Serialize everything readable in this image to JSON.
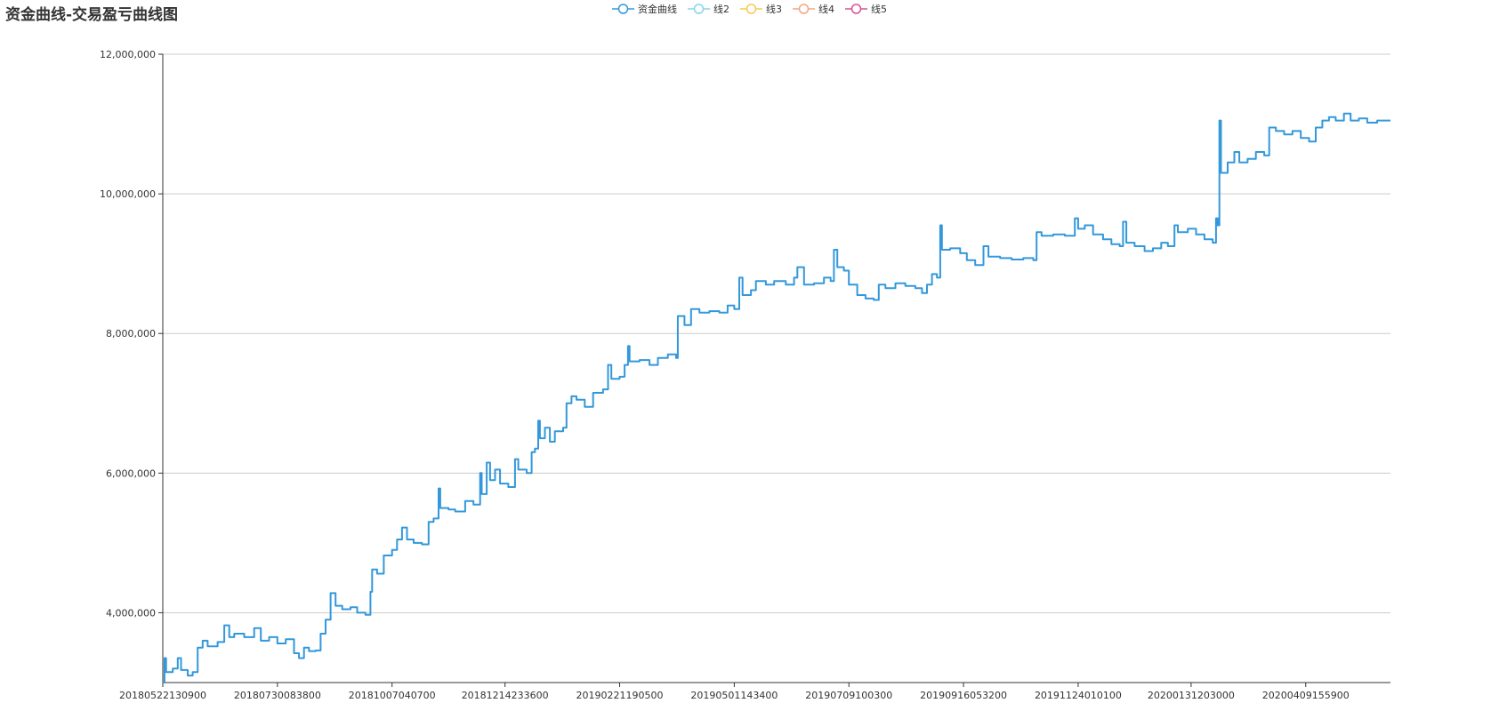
{
  "chart_data": {
    "type": "line",
    "title": "资金曲线-交易盈亏曲线图",
    "legend": {
      "placement": "top-center",
      "entries": [
        {
          "name": "资金曲线",
          "color": "#3398DB"
        },
        {
          "name": "线2",
          "color": "#86D4F0"
        },
        {
          "name": "线3",
          "color": "#F8C94F"
        },
        {
          "name": "线4",
          "color": "#F4A582"
        },
        {
          "name": "线5",
          "color": "#D9509A"
        }
      ]
    },
    "xlabel": "",
    "ylabel": "",
    "ylim": [
      3000000,
      12000000
    ],
    "y_ticks": [
      4000000,
      6000000,
      8000000,
      10000000,
      12000000
    ],
    "y_tick_labels": [
      "4,000,000",
      "6,000,000",
      "8,000,000",
      "10,000,000",
      "12,000,000"
    ],
    "x_tick_labels": [
      "20180522130900",
      "20180730083800",
      "20181007040700",
      "20181214233600",
      "20190221190500",
      "20190501143400",
      "20190709100300",
      "20190916053200",
      "20191124010100",
      "20200131203000",
      "20200409155900"
    ],
    "x_tick_dates": [
      "2018-05-22",
      "2018-07-30",
      "2018-10-07",
      "2018-12-14",
      "2019-02-21",
      "2019-05-01",
      "2019-07-09",
      "2019-09-16",
      "2019-11-24",
      "2020-01-31",
      "2020-04-09"
    ],
    "x_range": [
      "2018-05-22",
      "2020-05-30"
    ],
    "grid": true,
    "series": [
      {
        "name": "资金曲线",
        "color": "#3398DB",
        "points": [
          [
            "2018-05-22",
            3000000
          ],
          [
            "2018-05-23",
            3350000
          ],
          [
            "2018-05-24",
            3150000
          ],
          [
            "2018-05-28",
            3200000
          ],
          [
            "2018-05-31",
            3350000
          ],
          [
            "2018-06-02",
            3180000
          ],
          [
            "2018-06-06",
            3100000
          ],
          [
            "2018-06-09",
            3150000
          ],
          [
            "2018-06-12",
            3500000
          ],
          [
            "2018-06-15",
            3600000
          ],
          [
            "2018-06-18",
            3520000
          ],
          [
            "2018-06-24",
            3580000
          ],
          [
            "2018-06-28",
            3820000
          ],
          [
            "2018-07-01",
            3650000
          ],
          [
            "2018-07-04",
            3700000
          ],
          [
            "2018-07-10",
            3650000
          ],
          [
            "2018-07-16",
            3780000
          ],
          [
            "2018-07-20",
            3600000
          ],
          [
            "2018-07-25",
            3650000
          ],
          [
            "2018-07-30",
            3560000
          ],
          [
            "2018-08-04",
            3620000
          ],
          [
            "2018-08-09",
            3420000
          ],
          [
            "2018-08-12",
            3350000
          ],
          [
            "2018-08-15",
            3500000
          ],
          [
            "2018-08-18",
            3450000
          ],
          [
            "2018-08-22",
            3460000
          ],
          [
            "2018-08-25",
            3700000
          ],
          [
            "2018-08-28",
            3900000
          ],
          [
            "2018-08-31",
            4280000
          ],
          [
            "2018-09-03",
            4100000
          ],
          [
            "2018-09-07",
            4050000
          ],
          [
            "2018-09-12",
            4080000
          ],
          [
            "2018-09-16",
            4000000
          ],
          [
            "2018-09-21",
            3970000
          ],
          [
            "2018-09-24",
            4300000
          ],
          [
            "2018-09-25",
            4620000
          ],
          [
            "2018-09-28",
            4560000
          ],
          [
            "2018-10-02",
            4820000
          ],
          [
            "2018-10-07",
            4900000
          ],
          [
            "2018-10-10",
            5050000
          ],
          [
            "2018-10-13",
            5220000
          ],
          [
            "2018-10-16",
            5050000
          ],
          [
            "2018-10-20",
            5000000
          ],
          [
            "2018-10-25",
            4980000
          ],
          [
            "2018-10-29",
            5300000
          ],
          [
            "2018-11-01",
            5350000
          ],
          [
            "2018-11-04",
            5780000
          ],
          [
            "2018-11-05",
            5500000
          ],
          [
            "2018-11-10",
            5480000
          ],
          [
            "2018-11-14",
            5450000
          ],
          [
            "2018-11-20",
            5600000
          ],
          [
            "2018-11-25",
            5550000
          ],
          [
            "2018-11-29",
            6000000
          ],
          [
            "2018-11-30",
            5700000
          ],
          [
            "2018-12-03",
            6150000
          ],
          [
            "2018-12-05",
            5900000
          ],
          [
            "2018-12-08",
            6050000
          ],
          [
            "2018-12-11",
            5850000
          ],
          [
            "2018-12-16",
            5800000
          ],
          [
            "2018-12-20",
            6200000
          ],
          [
            "2018-12-22",
            6050000
          ],
          [
            "2018-12-27",
            6000000
          ],
          [
            "2018-12-30",
            6300000
          ],
          [
            "2019-01-01",
            6350000
          ],
          [
            "2019-01-03",
            6750000
          ],
          [
            "2019-01-04",
            6500000
          ],
          [
            "2019-01-07",
            6650000
          ],
          [
            "2019-01-10",
            6450000
          ],
          [
            "2019-01-13",
            6600000
          ],
          [
            "2019-01-18",
            6650000
          ],
          [
            "2019-01-20",
            7000000
          ],
          [
            "2019-01-23",
            7100000
          ],
          [
            "2019-01-26",
            7050000
          ],
          [
            "2019-01-31",
            6950000
          ],
          [
            "2019-02-05",
            7150000
          ],
          [
            "2019-02-11",
            7200000
          ],
          [
            "2019-02-14",
            7550000
          ],
          [
            "2019-02-16",
            7350000
          ],
          [
            "2019-02-21",
            7380000
          ],
          [
            "2019-02-24",
            7550000
          ],
          [
            "2019-02-26",
            7820000
          ],
          [
            "2019-02-27",
            7600000
          ],
          [
            "2019-03-05",
            7620000
          ],
          [
            "2019-03-11",
            7550000
          ],
          [
            "2019-03-16",
            7650000
          ],
          [
            "2019-03-22",
            7700000
          ],
          [
            "2019-03-27",
            7650000
          ],
          [
            "2019-03-28",
            8250000
          ],
          [
            "2019-04-01",
            8120000
          ],
          [
            "2019-04-05",
            8350000
          ],
          [
            "2019-04-10",
            8300000
          ],
          [
            "2019-04-16",
            8320000
          ],
          [
            "2019-04-22",
            8300000
          ],
          [
            "2019-04-27",
            8400000
          ],
          [
            "2019-05-01",
            8350000
          ],
          [
            "2019-05-04",
            8800000
          ],
          [
            "2019-05-06",
            8550000
          ],
          [
            "2019-05-11",
            8620000
          ],
          [
            "2019-05-14",
            8750000
          ],
          [
            "2019-05-20",
            8700000
          ],
          [
            "2019-05-25",
            8750000
          ],
          [
            "2019-06-01",
            8700000
          ],
          [
            "2019-06-06",
            8800000
          ],
          [
            "2019-06-08",
            8950000
          ],
          [
            "2019-06-12",
            8700000
          ],
          [
            "2019-06-18",
            8720000
          ],
          [
            "2019-06-24",
            8800000
          ],
          [
            "2019-06-28",
            8750000
          ],
          [
            "2019-06-30",
            9200000
          ],
          [
            "2019-07-02",
            8950000
          ],
          [
            "2019-07-06",
            8900000
          ],
          [
            "2019-07-09",
            8700000
          ],
          [
            "2019-07-14",
            8550000
          ],
          [
            "2019-07-19",
            8500000
          ],
          [
            "2019-07-24",
            8480000
          ],
          [
            "2019-07-27",
            8700000
          ],
          [
            "2019-07-31",
            8650000
          ],
          [
            "2019-08-06",
            8720000
          ],
          [
            "2019-08-12",
            8680000
          ],
          [
            "2019-08-18",
            8650000
          ],
          [
            "2019-08-22",
            8580000
          ],
          [
            "2019-08-25",
            8700000
          ],
          [
            "2019-08-28",
            8850000
          ],
          [
            "2019-08-31",
            8800000
          ],
          [
            "2019-09-02",
            9550000
          ],
          [
            "2019-09-03",
            9200000
          ],
          [
            "2019-09-08",
            9220000
          ],
          [
            "2019-09-14",
            9150000
          ],
          [
            "2019-09-18",
            9050000
          ],
          [
            "2019-09-23",
            8980000
          ],
          [
            "2019-09-28",
            9250000
          ],
          [
            "2019-10-01",
            9100000
          ],
          [
            "2019-10-08",
            9080000
          ],
          [
            "2019-10-15",
            9060000
          ],
          [
            "2019-10-22",
            9080000
          ],
          [
            "2019-10-28",
            9050000
          ],
          [
            "2019-10-30",
            9450000
          ],
          [
            "2019-11-02",
            9400000
          ],
          [
            "2019-11-09",
            9420000
          ],
          [
            "2019-11-16",
            9400000
          ],
          [
            "2019-11-22",
            9650000
          ],
          [
            "2019-11-24",
            9500000
          ],
          [
            "2019-11-28",
            9550000
          ],
          [
            "2019-12-03",
            9420000
          ],
          [
            "2019-12-09",
            9350000
          ],
          [
            "2019-12-14",
            9280000
          ],
          [
            "2019-12-19",
            9250000
          ],
          [
            "2019-12-21",
            9600000
          ],
          [
            "2019-12-23",
            9300000
          ],
          [
            "2019-12-28",
            9250000
          ],
          [
            "2020-01-03",
            9180000
          ],
          [
            "2020-01-08",
            9220000
          ],
          [
            "2020-01-13",
            9300000
          ],
          [
            "2020-01-17",
            9250000
          ],
          [
            "2020-01-21",
            9550000
          ],
          [
            "2020-01-23",
            9450000
          ],
          [
            "2020-01-29",
            9500000
          ],
          [
            "2020-02-03",
            9420000
          ],
          [
            "2020-02-08",
            9350000
          ],
          [
            "2020-02-13",
            9300000
          ],
          [
            "2020-02-15",
            9650000
          ],
          [
            "2020-02-16",
            9550000
          ],
          [
            "2020-02-17",
            11050000
          ],
          [
            "2020-02-18",
            10300000
          ],
          [
            "2020-02-22",
            10450000
          ],
          [
            "2020-02-26",
            10600000
          ],
          [
            "2020-02-29",
            10450000
          ],
          [
            "2020-03-05",
            10500000
          ],
          [
            "2020-03-10",
            10600000
          ],
          [
            "2020-03-15",
            10550000
          ],
          [
            "2020-03-18",
            10950000
          ],
          [
            "2020-03-22",
            10900000
          ],
          [
            "2020-03-27",
            10850000
          ],
          [
            "2020-04-01",
            10900000
          ],
          [
            "2020-04-06",
            10800000
          ],
          [
            "2020-04-11",
            10750000
          ],
          [
            "2020-04-15",
            10950000
          ],
          [
            "2020-04-19",
            11050000
          ],
          [
            "2020-04-23",
            11100000
          ],
          [
            "2020-04-27",
            11050000
          ],
          [
            "2020-05-02",
            11150000
          ],
          [
            "2020-05-06",
            11050000
          ],
          [
            "2020-05-11",
            11080000
          ],
          [
            "2020-05-16",
            11020000
          ],
          [
            "2020-05-22",
            11050000
          ],
          [
            "2020-05-30",
            11050000
          ]
        ]
      }
    ]
  }
}
